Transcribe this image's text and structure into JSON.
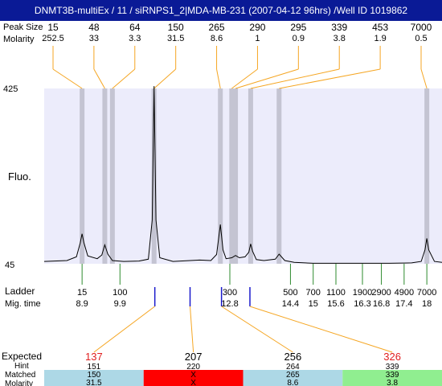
{
  "title": "DNMT3B-multiEx / 11 / siRNPS1_2|MDA-MB-231 (2007-04-12 96hrs) /Well ID 1019862",
  "labels": {
    "peak_size": "Peak Size",
    "molarity": "Molarity",
    "fluo": "Fluo.",
    "ladder": "Ladder",
    "mig_time": "Mig. time",
    "expected": "Expected",
    "hint": "Hint",
    "matched": "Matched",
    "molarity_bottom": "Molarity"
  },
  "colors": {
    "title_bg": "#0a1a96",
    "plot_bg": "#ececfb",
    "peak_band": "#c4c4d2",
    "connector": "#f5a623",
    "ladder_tick": "#2e8b2e",
    "blue_tick": "#1a1acc",
    "expected_red": "#e02020",
    "match_ok": "#add8e6",
    "match_fail": "#ff0000",
    "match_green": "#90ee90"
  },
  "chart_data": {
    "type": "electropherogram",
    "ylabel": "Fluo.",
    "y_ticks": [
      "425",
      "45"
    ],
    "ylim": [
      45,
      425
    ],
    "xlim": [
      7.9,
      18.4
    ],
    "grid": false,
    "trace": [
      [
        7.9,
        50
      ],
      [
        8.5,
        52
      ],
      [
        8.75,
        60
      ],
      [
        8.85,
        90
      ],
      [
        8.9,
        110
      ],
      [
        8.95,
        90
      ],
      [
        9.05,
        62
      ],
      [
        9.3,
        56
      ],
      [
        9.42,
        64
      ],
      [
        9.5,
        86
      ],
      [
        9.58,
        66
      ],
      [
        9.7,
        52
      ],
      [
        10.0,
        50
      ],
      [
        10.4,
        51
      ],
      [
        10.65,
        55
      ],
      [
        10.75,
        140
      ],
      [
        10.8,
        430
      ],
      [
        10.85,
        140
      ],
      [
        10.95,
        58
      ],
      [
        11.3,
        50
      ],
      [
        12.0,
        53
      ],
      [
        12.3,
        52
      ],
      [
        12.45,
        65
      ],
      [
        12.55,
        130
      ],
      [
        12.62,
        75
      ],
      [
        12.7,
        56
      ],
      [
        12.85,
        58
      ],
      [
        12.95,
        63
      ],
      [
        13.05,
        58
      ],
      [
        13.2,
        60
      ],
      [
        13.3,
        70
      ],
      [
        13.35,
        88
      ],
      [
        13.4,
        72
      ],
      [
        13.5,
        54
      ],
      [
        13.7,
        52
      ],
      [
        14.0,
        55
      ],
      [
        14.1,
        66
      ],
      [
        14.25,
        52
      ],
      [
        14.5,
        48
      ],
      [
        15.0,
        46
      ],
      [
        16.0,
        46
      ],
      [
        17.0,
        46
      ],
      [
        17.6,
        47
      ],
      [
        17.85,
        50
      ],
      [
        17.95,
        75
      ],
      [
        18.0,
        100
      ],
      [
        18.05,
        75
      ],
      [
        18.2,
        50
      ],
      [
        18.4,
        48
      ]
    ],
    "peaks": [
      {
        "size": "15",
        "molarity": "252.5",
        "time": 8.9
      },
      {
        "size": "48",
        "molarity": "33",
        "time": 9.5
      },
      {
        "size": "64",
        "molarity": "3.3",
        "time": 9.7
      },
      {
        "size": "150",
        "molarity": "31.5",
        "time": 10.8
      },
      {
        "size": "265",
        "molarity": "8.6",
        "time": 12.55
      },
      {
        "size": "290",
        "molarity": "1",
        "time": 12.85
      },
      {
        "size": "295",
        "molarity": "0.9",
        "time": 12.95
      },
      {
        "size": "339",
        "molarity": "3.8",
        "time": 13.35
      },
      {
        "size": "453",
        "molarity": "1.9",
        "time": 14.1
      },
      {
        "size": "7000",
        "molarity": "0.5",
        "time": 18.0
      }
    ],
    "ladder": [
      {
        "size": "15",
        "time": "8.9",
        "t": 8.9
      },
      {
        "size": "100",
        "time": "9.9",
        "t": 9.9
      },
      {
        "size": "300",
        "time": "12.8",
        "t": 12.8
      },
      {
        "size": "500",
        "time": "14.4",
        "t": 14.4
      },
      {
        "size": "700",
        "time": "15",
        "t": 15.0
      },
      {
        "size": "1100",
        "time": "15.6",
        "t": 15.6
      },
      {
        "size": "1900",
        "time": "16.3",
        "t": 16.3
      },
      {
        "size": "2900",
        "time": "16.8",
        "t": 16.8
      },
      {
        "size": "4900",
        "time": "17.4",
        "t": 17.4
      },
      {
        "size": "7000",
        "time": "18",
        "t": 18.0
      }
    ],
    "blue_marks": [
      10.82,
      11.75,
      12.58,
      13.33
    ],
    "expected": [
      {
        "expected": "137",
        "expected_color": "red",
        "hint": "151",
        "matched": "150",
        "molarity": "31.5",
        "status": "ok",
        "mark": 10.82
      },
      {
        "expected": "207",
        "expected_color": "black",
        "hint": "220",
        "matched": "X",
        "molarity": "X",
        "status": "fail",
        "mark": 11.75
      },
      {
        "expected": "256",
        "expected_color": "black",
        "hint": "264",
        "matched": "265",
        "molarity": "8.6",
        "status": "ok",
        "mark": 12.58
      },
      {
        "expected": "326",
        "expected_color": "red",
        "hint": "339",
        "matched": "339",
        "molarity": "3.8",
        "status": "green",
        "mark": 13.33
      }
    ]
  }
}
